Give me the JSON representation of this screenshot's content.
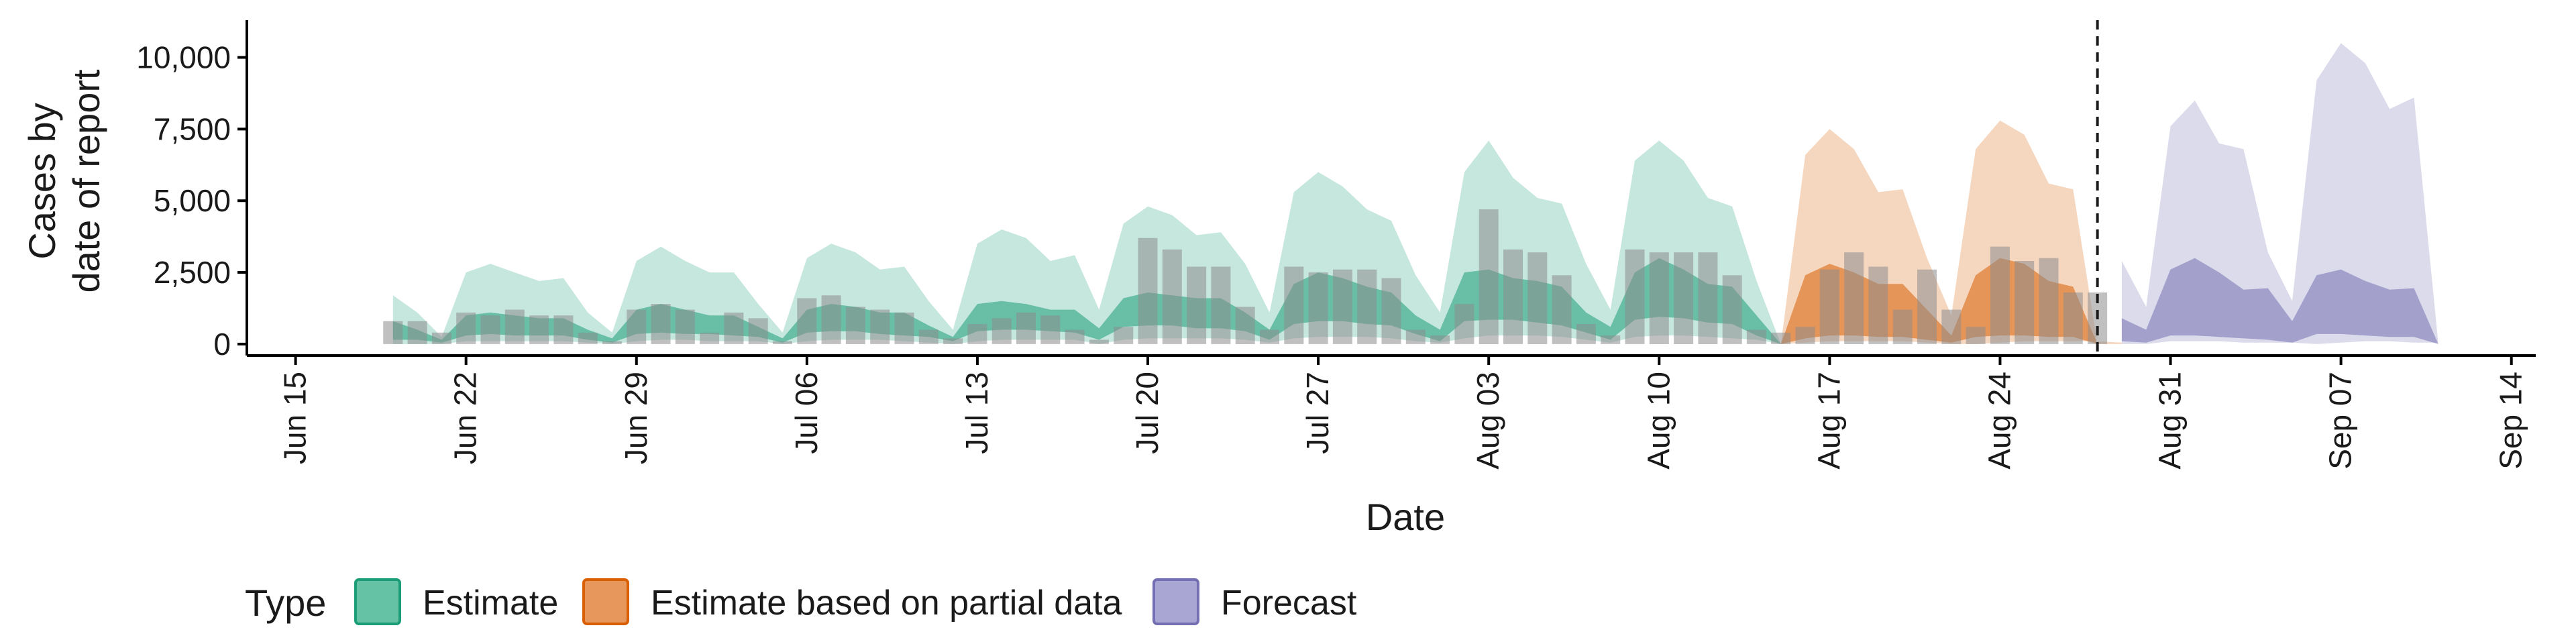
{
  "chart_data": {
    "type": "area",
    "xlabel": "Date",
    "ylabel_line1": "Cases by",
    "ylabel_line2": "date of report",
    "x_range": [
      "2020-06-13",
      "2020-09-15"
    ],
    "ylim": [
      -400,
      11300
    ],
    "y_ticks": [
      0,
      2500,
      5000,
      7500,
      10000
    ],
    "y_tick_labels": [
      "0",
      "2,500",
      "5,000",
      "7,500",
      "10,000"
    ],
    "x_ticks": [
      "2020-06-15",
      "2020-06-22",
      "2020-06-29",
      "2020-07-06",
      "2020-07-13",
      "2020-07-20",
      "2020-07-27",
      "2020-08-03",
      "2020-08-10",
      "2020-08-17",
      "2020-08-24",
      "2020-08-31",
      "2020-09-07",
      "2020-09-14"
    ],
    "x_tick_labels": [
      "Jun 15",
      "Jun 22",
      "Jun 29",
      "Jul 06",
      "Jul 13",
      "Jul 20",
      "Jul 27",
      "Aug 03",
      "Aug 10",
      "Aug 17",
      "Aug 24",
      "Aug 31",
      "Sep 07",
      "Sep 14"
    ],
    "forecast_start": "2020-08-28",
    "grid": false,
    "legend": {
      "title": "Type",
      "position": "bottom",
      "items": [
        {
          "label": "Estimate",
          "fill": "#66c2a5",
          "border": "#1b9e77"
        },
        {
          "label": "Estimate based on partial data",
          "fill": "#e8975c",
          "border": "#d95f02"
        },
        {
          "label": "Forecast",
          "fill": "#aaa6d4",
          "border": "#7570b3"
        }
      ]
    },
    "colors": {
      "estimate": "#1b9e77",
      "partial": "#d95f02",
      "forecast": "#7570b3",
      "observed_bars": "#8c8c8c",
      "forecast_line": "#1a1a1a"
    },
    "observed_cases": {
      "start_date": "2020-06-19",
      "values": [
        800,
        800,
        400,
        1100,
        1000,
        1200,
        1000,
        1000,
        400,
        100,
        1200,
        1400,
        1200,
        400,
        1100,
        900,
        100,
        1600,
        1700,
        1300,
        1200,
        1100,
        500,
        200,
        700,
        900,
        1100,
        1000,
        500,
        150,
        600,
        3700,
        3300,
        2700,
        2700,
        1300,
        500,
        2700,
        2500,
        2600,
        2600,
        2300,
        500,
        300,
        1400,
        4700,
        3300,
        3200,
        2400,
        700,
        300,
        3300,
        3200,
        3200,
        3200,
        2400,
        500,
        400,
        600,
        2600,
        3200,
        2700,
        1200,
        2600,
        1200,
        600,
        3400,
        2900,
        3000,
        1800,
        1800
      ]
    },
    "series": [
      {
        "name": "Estimate",
        "start_date": "2020-06-19",
        "lower90": [
          0,
          0,
          0,
          100,
          100,
          100,
          100,
          100,
          50,
          0,
          100,
          150,
          150,
          100,
          100,
          100,
          0,
          100,
          150,
          150,
          150,
          100,
          50,
          0,
          100,
          150,
          150,
          150,
          150,
          0,
          150,
          200,
          200,
          200,
          200,
          150,
          50,
          200,
          250,
          250,
          250,
          200,
          100,
          50,
          200,
          300,
          300,
          300,
          250,
          150,
          50,
          250,
          300,
          300,
          250,
          200,
          150,
          0
        ],
        "upper90": [
          1700,
          1100,
          250,
          2500,
          2800,
          2500,
          2200,
          2300,
          1100,
          400,
          2900,
          3400,
          2900,
          2500,
          2500,
          1400,
          400,
          3000,
          3500,
          3200,
          2600,
          2700,
          1500,
          500,
          3500,
          4000,
          3700,
          2900,
          3100,
          1200,
          4200,
          4800,
          4500,
          3800,
          3900,
          2800,
          1100,
          5300,
          6000,
          5500,
          4700,
          4300,
          2400,
          1100,
          6000,
          7100,
          5800,
          5100,
          4900,
          2800,
          1200,
          6400,
          7100,
          6400,
          5100,
          4800,
          2200,
          0
        ],
        "lower50": [
          150,
          150,
          50,
          300,
          350,
          300,
          300,
          300,
          150,
          50,
          350,
          400,
          350,
          350,
          300,
          250,
          50,
          400,
          450,
          450,
          350,
          300,
          250,
          100,
          450,
          500,
          500,
          450,
          400,
          150,
          600,
          650,
          650,
          550,
          550,
          450,
          150,
          700,
          800,
          800,
          700,
          650,
          350,
          100,
          800,
          850,
          850,
          750,
          650,
          400,
          150,
          850,
          950,
          900,
          750,
          700,
          300,
          0
        ],
        "upper50": [
          800,
          500,
          150,
          1000,
          1100,
          1000,
          900,
          900,
          500,
          200,
          1200,
          1400,
          1200,
          1000,
          1000,
          600,
          200,
          1200,
          1400,
          1300,
          1100,
          1100,
          650,
          250,
          1400,
          1500,
          1400,
          1200,
          1200,
          550,
          1600,
          1800,
          1700,
          1600,
          1600,
          1100,
          500,
          2100,
          2500,
          2300,
          2000,
          1800,
          1000,
          500,
          2500,
          2600,
          2300,
          2200,
          2000,
          1100,
          600,
          2500,
          3000,
          2600,
          2100,
          2000,
          1000,
          0
        ]
      },
      {
        "name": "Estimate based on partial data",
        "start_date": "2020-08-15",
        "lower90": [
          0,
          50,
          100,
          100,
          100,
          100,
          50,
          0,
          0,
          50,
          100,
          100,
          100,
          100,
          50
        ],
        "upper90": [
          0,
          6600,
          7500,
          6800,
          5300,
          5400,
          3000,
          1000,
          6800,
          7800,
          7300,
          5600,
          5400,
          0,
          0
        ],
        "lower50": [
          0,
          200,
          300,
          300,
          250,
          250,
          150,
          50,
          250,
          300,
          300,
          250,
          250,
          0,
          0
        ],
        "upper50": [
          0,
          2400,
          2800,
          2500,
          2100,
          2100,
          1200,
          300,
          2400,
          3000,
          2800,
          2200,
          2000,
          0,
          0
        ]
      },
      {
        "name": "Forecast",
        "start_date": "2020-08-29",
        "lower90": [
          0,
          0,
          100,
          100,
          100,
          50,
          50,
          50,
          0,
          50,
          100,
          100,
          50,
          50
        ],
        "upper90": [
          2900,
          1300,
          7600,
          8500,
          7000,
          6800,
          3200,
          1500,
          9200,
          10500,
          9800,
          8200,
          8600,
          0
        ],
        "lower50": [
          100,
          50,
          300,
          300,
          250,
          200,
          150,
          50,
          350,
          350,
          300,
          250,
          250,
          0
        ],
        "upper50": [
          900,
          500,
          2600,
          3000,
          2500,
          1900,
          1950,
          800,
          2400,
          2600,
          2200,
          1900,
          1950,
          0
        ]
      }
    ]
  }
}
